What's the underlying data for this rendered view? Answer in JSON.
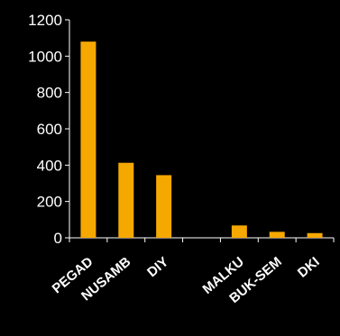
{
  "chart_data": {
    "type": "bar",
    "title": "",
    "xlabel": "",
    "ylabel": "",
    "categories": [
      "PEGAD",
      "NUSAMB",
      "DIY",
      "",
      "MALKU",
      "BUK-SEM",
      "DKI"
    ],
    "values": [
      1080,
      413,
      345,
      0,
      68,
      33,
      26
    ],
    "ylim": [
      0,
      1200
    ],
    "yticks": [
      0,
      200,
      400,
      600,
      800,
      1000,
      1200
    ],
    "grid": false,
    "legend": "none",
    "colors": {
      "background": "#000000",
      "bar": "#F5A800",
      "axis": "#ffffff",
      "text": "#ffffff"
    }
  }
}
